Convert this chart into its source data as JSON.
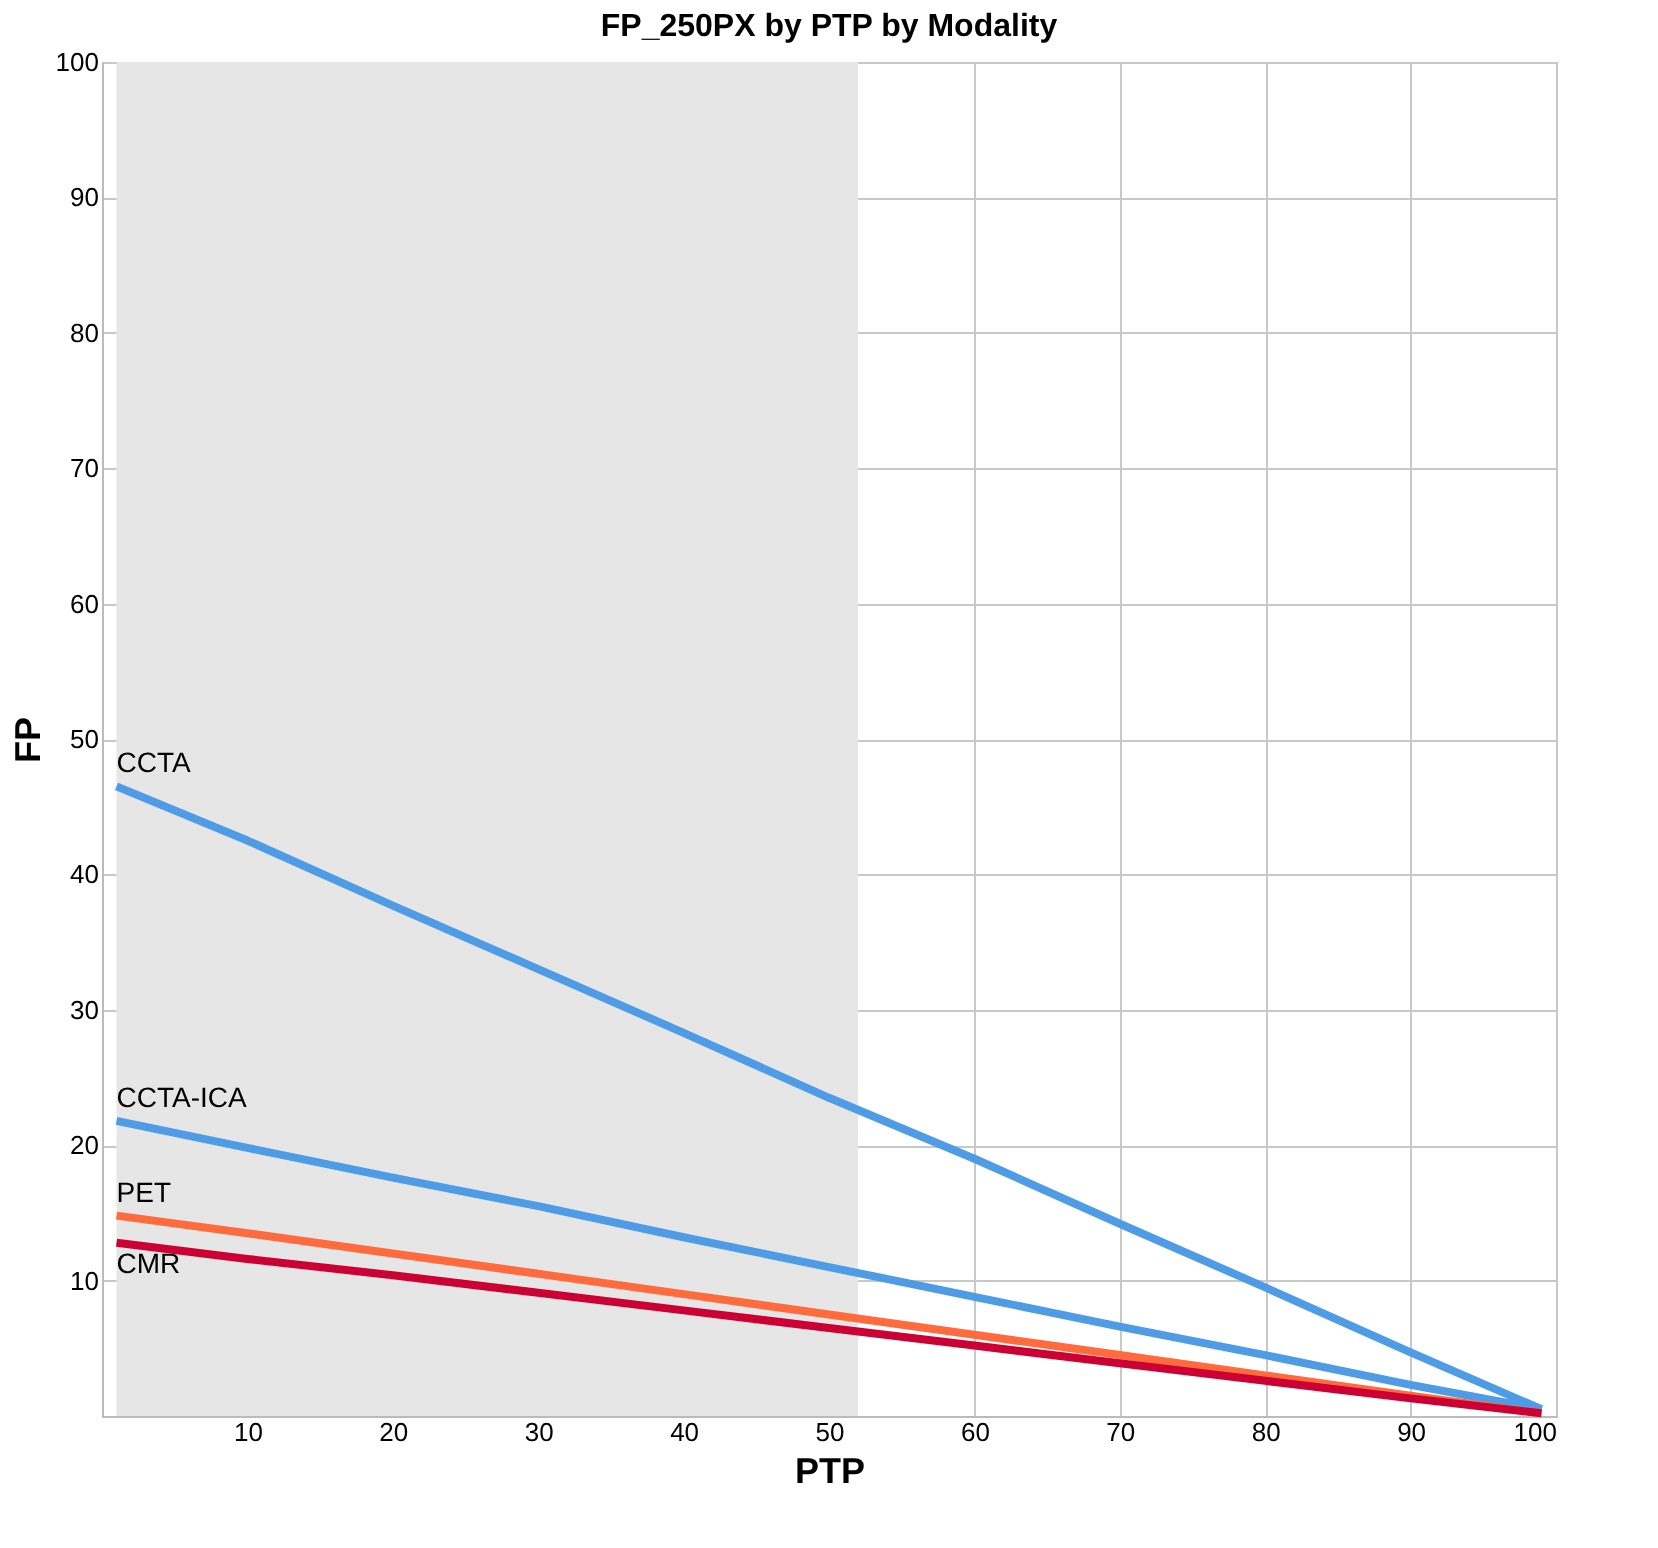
{
  "chart_data": {
    "type": "line",
    "title": "FP_250PX by PTP by Modality",
    "xlabel": "PTP",
    "ylabel": "FP",
    "x": [
      1,
      10,
      20,
      30,
      40,
      50,
      60,
      70,
      80,
      90,
      99
    ],
    "series": [
      {
        "name": "CCTA",
        "color": "#4e9be6",
        "values": [
          46.5,
          42.5,
          37.7,
          33,
          28.3,
          23.5,
          19,
          14.2,
          9.5,
          4.7,
          0.5
        ]
      },
      {
        "name": "CCTA-ICA",
        "color": "#4e9be6",
        "values": [
          21.8,
          19.8,
          17.6,
          15.5,
          13.2,
          11,
          8.8,
          6.6,
          4.5,
          2.3,
          0.5
        ]
      },
      {
        "name": "PET",
        "color": "#ff6b3d",
        "values": [
          14.8,
          13.5,
          12,
          10.5,
          9,
          7.5,
          6,
          4.5,
          3,
          1.5,
          0.2
        ]
      },
      {
        "name": "CMR",
        "color": "#cc0033",
        "values": [
          12.8,
          11.6,
          10.4,
          9.1,
          7.8,
          6.5,
          5.2,
          3.9,
          2.6,
          1.3,
          0.2
        ]
      }
    ],
    "xlim": [
      0,
      100
    ],
    "xticks": [
      10,
      20,
      30,
      40,
      50,
      60,
      70,
      80,
      90,
      100
    ],
    "ylim": [
      0,
      100
    ],
    "yticks": [
      10,
      20,
      30,
      40,
      50,
      60,
      70,
      80,
      90,
      100
    ],
    "bands": [
      {
        "axis": "x",
        "from": 1,
        "to": 52,
        "color": "#e6e6e6"
      }
    ],
    "grid": true,
    "line_style": "solid",
    "marker": "none"
  }
}
